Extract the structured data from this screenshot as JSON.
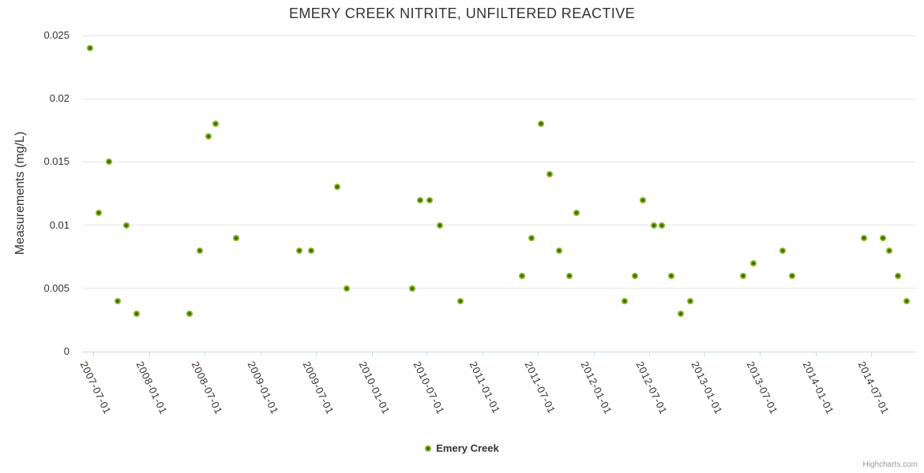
{
  "chart_data": {
    "type": "scatter",
    "title": "EMERY CREEK NITRITE, UNFILTERED REACTIVE",
    "xlabel": "",
    "ylabel": "Measurements (mg/L)",
    "ylim": [
      0,
      0.025
    ],
    "y_ticks": [
      0,
      0.005,
      0.01,
      0.015,
      0.02,
      0.025
    ],
    "y_tick_labels": [
      "0",
      "0.005",
      "0.01",
      "0.015",
      "0.02",
      "0.025"
    ],
    "x_tick_labels": [
      "2007-07-01",
      "2008-01-01",
      "2008-07-01",
      "2009-01-01",
      "2009-07-01",
      "2010-01-01",
      "2010-07-01",
      "2011-01-01",
      "2011-07-01",
      "2012-01-01",
      "2012-07-01",
      "2013-01-01",
      "2013-07-01",
      "2014-01-01",
      "2014-07-01"
    ],
    "x_range": [
      "2007-05-25",
      "2014-11-27"
    ],
    "grid": true,
    "legend_position": "bottom-center",
    "series": [
      {
        "name": "Emery Creek",
        "color": "#8bbc21",
        "points": [
          {
            "date": "2007-06-19",
            "value": 0.024
          },
          {
            "date": "2007-07-18",
            "value": 0.011
          },
          {
            "date": "2007-08-21",
            "value": 0.015
          },
          {
            "date": "2007-09-19",
            "value": 0.004
          },
          {
            "date": "2007-10-17",
            "value": 0.01
          },
          {
            "date": "2007-11-19",
            "value": 0.003
          },
          {
            "date": "2008-05-11",
            "value": 0.003
          },
          {
            "date": "2008-06-14",
            "value": 0.008
          },
          {
            "date": "2008-07-13",
            "value": 0.017
          },
          {
            "date": "2008-08-05",
            "value": 0.018
          },
          {
            "date": "2008-10-13",
            "value": 0.009
          },
          {
            "date": "2009-05-08",
            "value": 0.008
          },
          {
            "date": "2009-06-15",
            "value": 0.008
          },
          {
            "date": "2009-09-09",
            "value": 0.013
          },
          {
            "date": "2009-10-10",
            "value": 0.005
          },
          {
            "date": "2010-05-14",
            "value": 0.005
          },
          {
            "date": "2010-06-09",
            "value": 0.012
          },
          {
            "date": "2010-07-10",
            "value": 0.012
          },
          {
            "date": "2010-08-13",
            "value": 0.01
          },
          {
            "date": "2010-10-20",
            "value": 0.004
          },
          {
            "date": "2011-05-10",
            "value": 0.006
          },
          {
            "date": "2011-06-10",
            "value": 0.009
          },
          {
            "date": "2011-07-13",
            "value": 0.018
          },
          {
            "date": "2011-08-11",
            "value": 0.014
          },
          {
            "date": "2011-09-09",
            "value": 0.008
          },
          {
            "date": "2011-10-13",
            "value": 0.006
          },
          {
            "date": "2011-11-07",
            "value": 0.011
          },
          {
            "date": "2012-04-12",
            "value": 0.004
          },
          {
            "date": "2012-05-15",
            "value": 0.006
          },
          {
            "date": "2012-06-12",
            "value": 0.012
          },
          {
            "date": "2012-07-18",
            "value": 0.01
          },
          {
            "date": "2012-08-13",
            "value": 0.01
          },
          {
            "date": "2012-09-12",
            "value": 0.006
          },
          {
            "date": "2012-10-15",
            "value": 0.003
          },
          {
            "date": "2012-11-13",
            "value": 0.004
          },
          {
            "date": "2013-05-06",
            "value": 0.006
          },
          {
            "date": "2013-06-11",
            "value": 0.007
          },
          {
            "date": "2013-09-15",
            "value": 0.008
          },
          {
            "date": "2013-10-16",
            "value": 0.006
          },
          {
            "date": "2014-06-08",
            "value": 0.009
          },
          {
            "date": "2014-08-10",
            "value": 0.009
          },
          {
            "date": "2014-08-30",
            "value": 0.008
          },
          {
            "date": "2014-09-27",
            "value": 0.006
          },
          {
            "date": "2014-10-26",
            "value": 0.004
          }
        ]
      }
    ]
  },
  "legend": {
    "label": "Emery Creek"
  },
  "credits": {
    "text": "Highcharts.com"
  },
  "colors": {
    "marker": "#8bbc21",
    "marker_edge": "#7cb51e",
    "marker_center": "#3f5d0b",
    "grid": "#e6e6e6",
    "axis_line": "#ccd6eb",
    "title_text": "#333333",
    "label_text": "#333333",
    "credits_text": "#999999",
    "background": "#ffffff"
  }
}
